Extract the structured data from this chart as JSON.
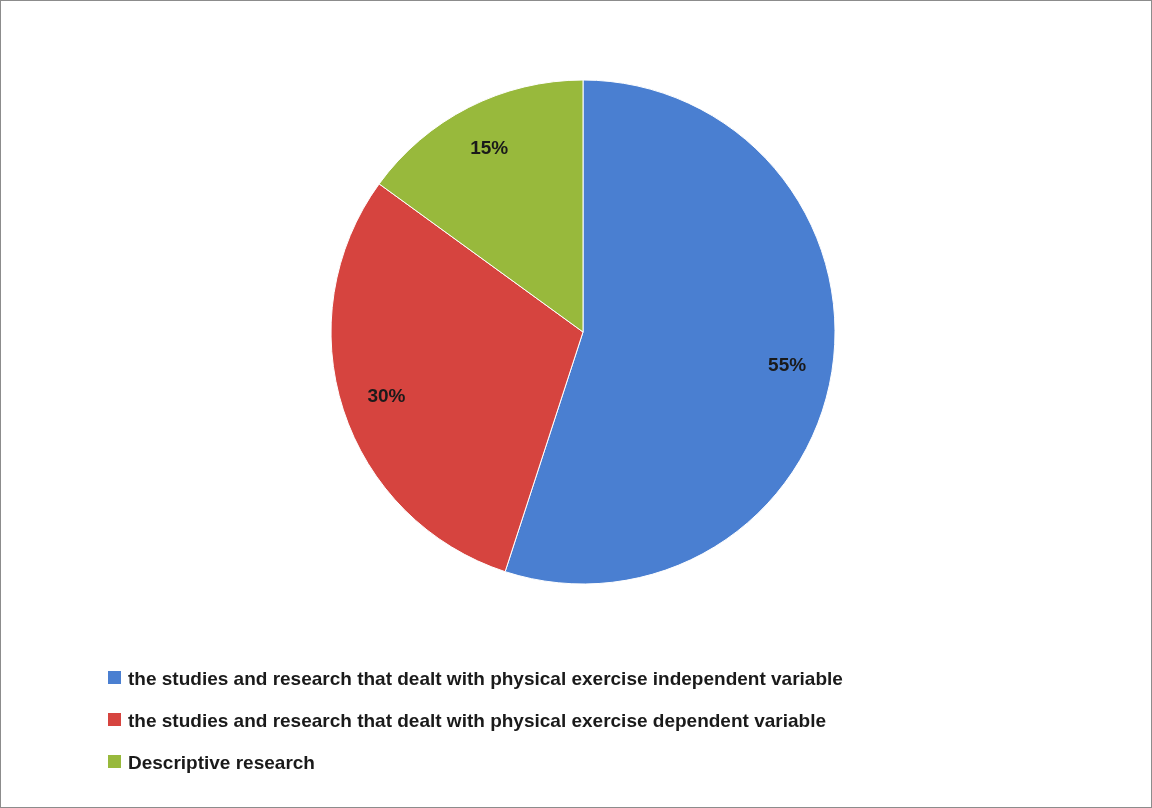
{
  "chart_data": {
    "type": "pie",
    "categories": [
      "the studies and research that dealt with physical exercise independent variable",
      "the studies and research that dealt with physical exercise dependent variable",
      "Descriptive research"
    ],
    "values": [
      55,
      30,
      15
    ],
    "value_labels": [
      "55%",
      "30%",
      "15%"
    ],
    "colors": [
      "#4a7fd1",
      "#d6443f",
      "#98b93c"
    ],
    "legend": "bottom"
  }
}
